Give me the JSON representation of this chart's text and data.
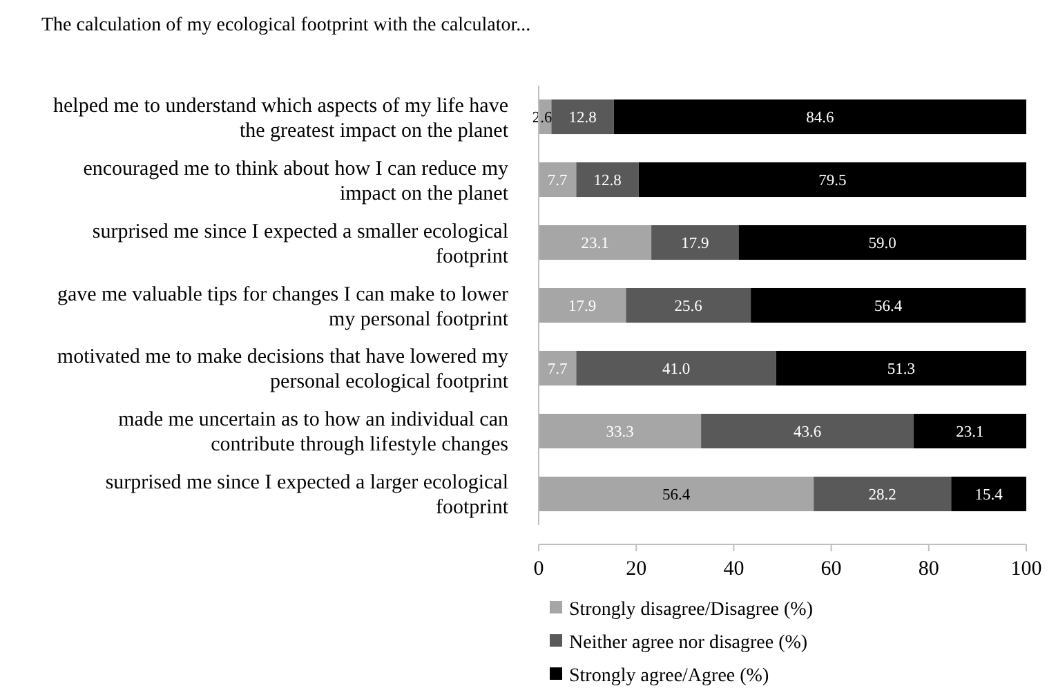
{
  "chart_data": {
    "type": "bar",
    "orientation": "horizontal",
    "stacked": true,
    "title": "The calculation of my ecological footprint with the calculator...",
    "categories": [
      "helped me to understand which aspects of my life have the greatest impact on the planet",
      "encouraged me to think about how I can reduce my impact on the planet",
      "surprised me since I expected a smaller ecological footprint",
      "gave me valuable tips for changes I can make to lower my personal footprint",
      "motivated me to make decisions that have lowered my personal ecological footprint",
      "made me uncertain as to how an individual can contribute through lifestyle changes",
      "surprised me since I expected a larger ecological footprint"
    ],
    "series": [
      {
        "name": "Strongly disagree/Disagree (%)",
        "color": "#a6a6a6",
        "values": [
          2.6,
          7.7,
          23.1,
          17.9,
          7.7,
          33.3,
          56.4
        ],
        "value_labels": [
          "2.6",
          "7.7",
          "23.1",
          "17.9",
          "7.7",
          "33.3",
          "56.4"
        ]
      },
      {
        "name": "Neither agree nor disagree (%)",
        "color": "#595959",
        "values": [
          12.8,
          12.8,
          17.9,
          25.6,
          41.0,
          43.6,
          28.2
        ],
        "value_labels": [
          "12.8",
          "12.8",
          "17.9",
          "25.6",
          "41.0",
          "43.6",
          "28.2"
        ]
      },
      {
        "name": "Strongly agree/Agree (%)",
        "color": "#000000",
        "values": [
          84.6,
          79.5,
          59.0,
          56.4,
          51.3,
          23.1,
          15.4
        ],
        "value_labels": [
          "84.6",
          "79.5",
          "59.0",
          "56.4",
          "51.3",
          "23.1",
          "15.4"
        ]
      }
    ],
    "xlim": [
      0,
      100
    ],
    "xticks": [
      0,
      20,
      40,
      60,
      80,
      100
    ],
    "grid": false,
    "legend": "bottom"
  }
}
